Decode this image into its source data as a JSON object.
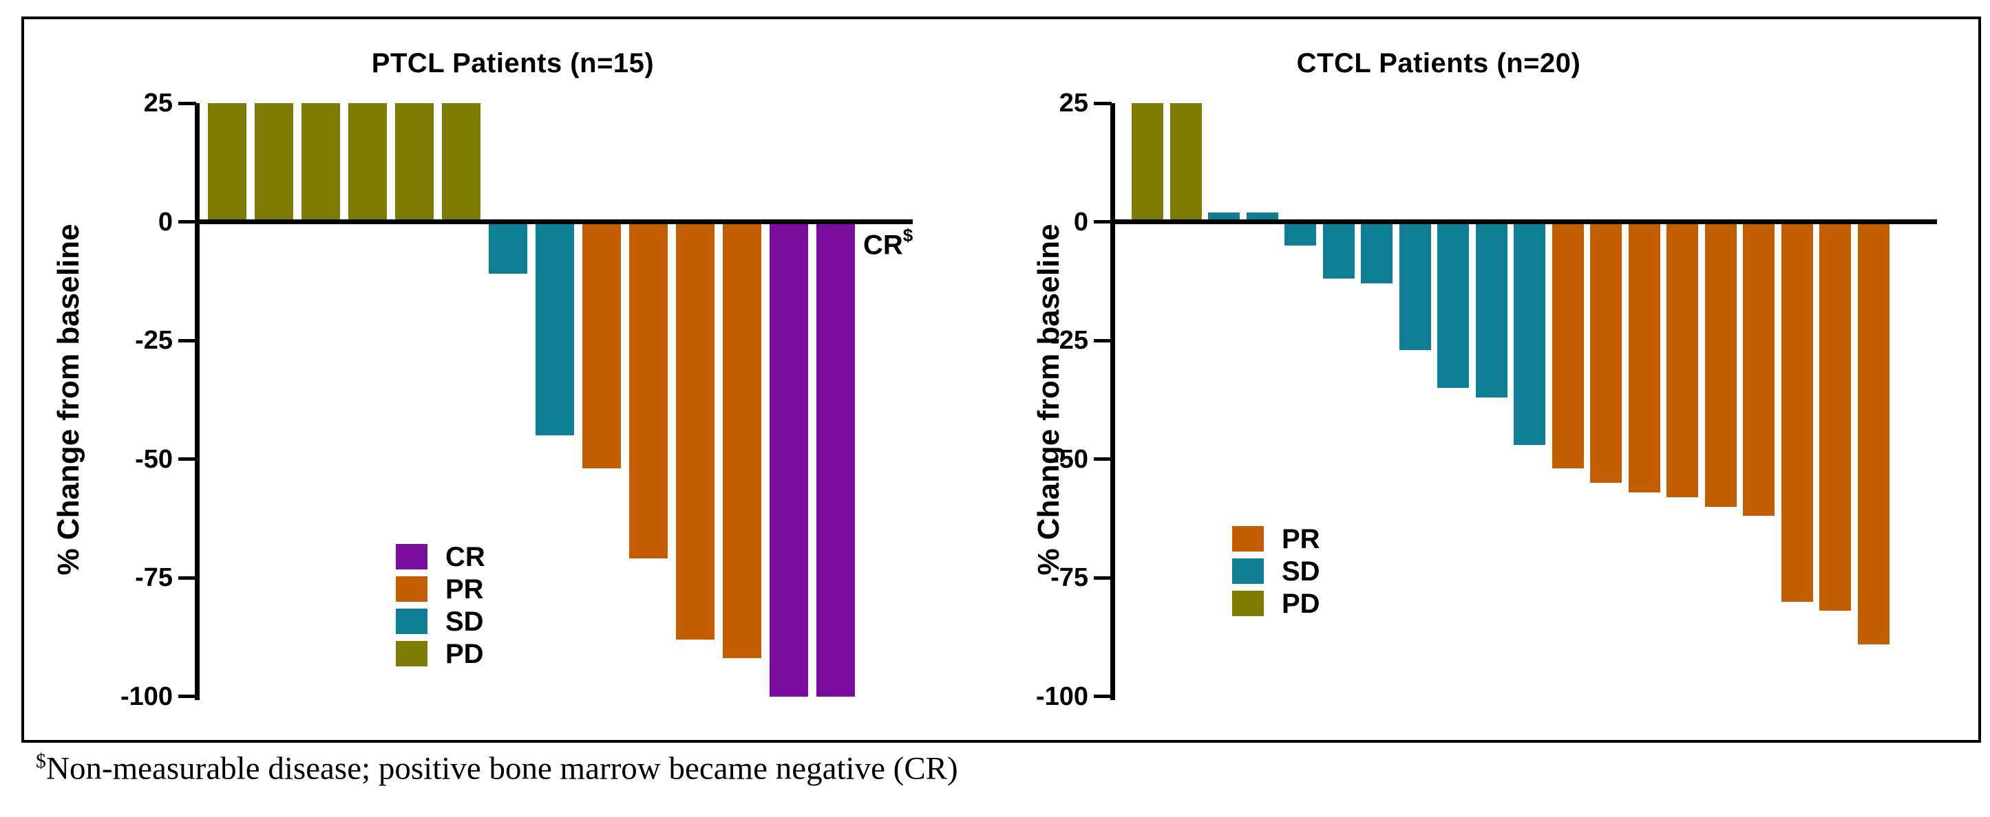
{
  "figure": {
    "footnote": {
      "symbol": "$",
      "text": "Non-measurable disease; positive bone marrow became negative (CR)"
    }
  },
  "colors": {
    "CR": "#7A0C9E",
    "PR": "#C25E00",
    "SD": "#0E7E95",
    "PD": "#7D7C00",
    "axis": "#000000",
    "background": "#FFFFFF"
  },
  "chart_data": [
    {
      "type": "bar",
      "subtype": "waterfall",
      "title": "PTCL Patients (n=15)",
      "xlabel": "",
      "ylabel": "% Change from baseline",
      "ylim": [
        -100,
        25
      ],
      "yticks": [
        25,
        0,
        -25,
        -50,
        -75,
        -100
      ],
      "grid": "off",
      "legend_position": "inside-lower-middle",
      "legend": [
        "CR",
        "PR",
        "SD",
        "PD"
      ],
      "annotation": {
        "text": "CR",
        "sup": "$",
        "meaning": "15th patient, non-measurable disease, no bar shown"
      },
      "bars": [
        {
          "value": 25,
          "response": "PD"
        },
        {
          "value": 25,
          "response": "PD"
        },
        {
          "value": 25,
          "response": "PD"
        },
        {
          "value": 25,
          "response": "PD"
        },
        {
          "value": 25,
          "response": "PD"
        },
        {
          "value": 25,
          "response": "PD"
        },
        {
          "value": -11,
          "response": "SD"
        },
        {
          "value": -45,
          "response": "SD"
        },
        {
          "value": -52,
          "response": "PR"
        },
        {
          "value": -71,
          "response": "PR"
        },
        {
          "value": -88,
          "response": "PR"
        },
        {
          "value": -92,
          "response": "PR"
        },
        {
          "value": -100,
          "response": "CR"
        },
        {
          "value": -100,
          "response": "CR"
        }
      ]
    },
    {
      "type": "bar",
      "subtype": "waterfall",
      "title": "CTCL Patients (n=20)",
      "xlabel": "",
      "ylabel": "% Change from baseline",
      "ylim": [
        -100,
        25
      ],
      "yticks": [
        25,
        0,
        -25,
        -50,
        -75,
        -100
      ],
      "grid": "off",
      "legend_position": "inside-lower-middle",
      "legend": [
        "PR",
        "SD",
        "PD"
      ],
      "bars": [
        {
          "value": 25,
          "response": "PD"
        },
        {
          "value": 25,
          "response": "PD"
        },
        {
          "value": 2,
          "response": "SD"
        },
        {
          "value": 2,
          "response": "SD"
        },
        {
          "value": -5,
          "response": "SD"
        },
        {
          "value": -12,
          "response": "SD"
        },
        {
          "value": -13,
          "response": "SD"
        },
        {
          "value": -27,
          "response": "SD"
        },
        {
          "value": -35,
          "response": "SD"
        },
        {
          "value": -37,
          "response": "SD"
        },
        {
          "value": -47,
          "response": "SD"
        },
        {
          "value": -52,
          "response": "PR"
        },
        {
          "value": -55,
          "response": "PR"
        },
        {
          "value": -57,
          "response": "PR"
        },
        {
          "value": -58,
          "response": "PR"
        },
        {
          "value": -60,
          "response": "PR"
        },
        {
          "value": -62,
          "response": "PR"
        },
        {
          "value": -80,
          "response": "PR"
        },
        {
          "value": -82,
          "response": "PR"
        },
        {
          "value": -89,
          "response": "PR"
        }
      ]
    }
  ]
}
